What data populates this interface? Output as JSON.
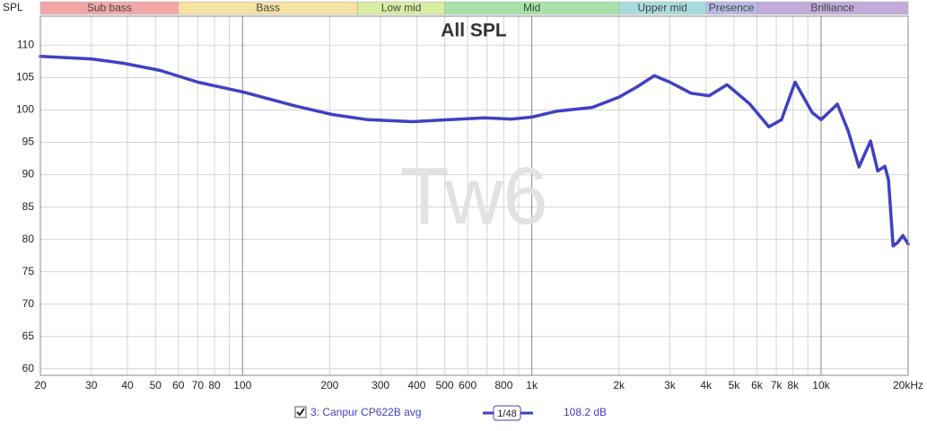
{
  "chart_data": {
    "type": "line",
    "title": "All SPL",
    "watermark": "Tw6",
    "y_label": "SPL",
    "log_x": true,
    "grid": true,
    "xlim": [
      20,
      20000
    ],
    "ylim": [
      59,
      114.5
    ],
    "xticks": [
      20,
      30,
      40,
      50,
      60,
      70,
      80,
      100,
      200,
      300,
      400,
      500,
      600,
      800,
      {
        "value": 1000,
        "label": "1k"
      },
      {
        "value": 2000,
        "label": "2k"
      },
      {
        "value": 3000,
        "label": "3k"
      },
      {
        "value": 4000,
        "label": "4k"
      },
      {
        "value": 5000,
        "label": "5k"
      },
      {
        "value": 6000,
        "label": "6k"
      },
      {
        "value": 7000,
        "label": "7k"
      },
      {
        "value": 8000,
        "label": "8k"
      },
      {
        "value": 10000,
        "label": "10k"
      },
      {
        "value": 20000,
        "label": "20kHz"
      }
    ],
    "minor_xticks": [
      90,
      700,
      900,
      9000
    ],
    "major_xticks": [
      100,
      1000,
      10000
    ],
    "yticks": [
      60,
      65,
      70,
      75,
      80,
      85,
      90,
      95,
      100,
      105,
      110
    ],
    "bands": [
      {
        "name": "Sub bass",
        "color": "#f2a7a7",
        "from": 20,
        "to": 60
      },
      {
        "name": "Bass",
        "color": "#f6e3a3",
        "from": 60,
        "to": 250
      },
      {
        "name": "Low mid",
        "color": "#d9eea2",
        "from": 250,
        "to": 500
      },
      {
        "name": "Mid",
        "color": "#a8e2a8",
        "from": 500,
        "to": 2000
      },
      {
        "name": "Upper mid",
        "color": "#a8dcdc",
        "from": 2000,
        "to": 4000
      },
      {
        "name": "Presence",
        "color": "#b6bae6",
        "from": 4000,
        "to": 6000
      },
      {
        "name": "Brilliance",
        "color": "#c2abd9",
        "from": 6000,
        "to": 20000
      }
    ],
    "x": [
      20,
      30,
      39,
      52,
      70,
      100,
      153,
      204,
      271,
      388,
      516,
      687,
      851,
      1000,
      1217,
      1619,
      2004,
      2314,
      2650,
      3000,
      3550,
      4100,
      4730,
      5650,
      6600,
      7300,
      8130,
      9320,
      10000,
      11380,
      12400,
      13520,
      14320,
      14830,
      15700,
      16620,
      17100,
      17740,
      18370,
      19180,
      20000
    ],
    "series": [
      {
        "name": "3: Canpur CP622B avg",
        "color": "#4040c4",
        "values": [
          108.3,
          107.9,
          107.2,
          106.1,
          104.3,
          102.8,
          100.6,
          99.3,
          98.5,
          98.2,
          98.5,
          98.8,
          98.6,
          98.9,
          99.8,
          100.4,
          102.0,
          103.6,
          105.3,
          104.3,
          102.6,
          102.2,
          103.9,
          101.0,
          97.4,
          98.5,
          104.3,
          99.6,
          98.5,
          100.9,
          96.8,
          91.2,
          93.7,
          95.2,
          90.6,
          91.3,
          89.2,
          79.0,
          79.5,
          80.6,
          79.3
        ]
      }
    ],
    "smoothing": "1/48",
    "legend_value": "108.2 dB"
  }
}
